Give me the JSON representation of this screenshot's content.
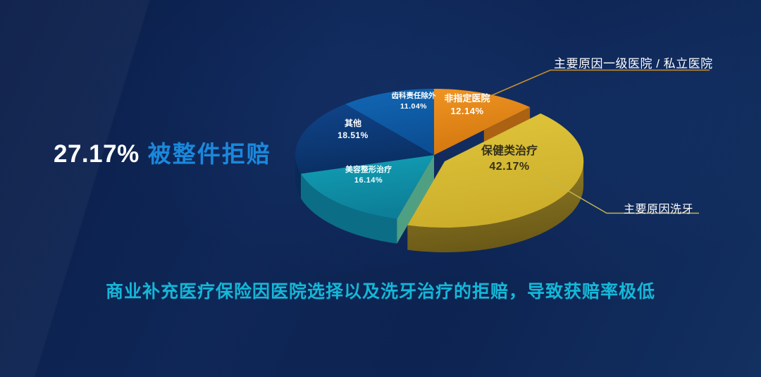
{
  "slide": {
    "headline": {
      "stat": "27.17%",
      "text": "被整件拒赔"
    },
    "annotation_top": "主要原因一级医院 / 私立医院",
    "annotation_right": "主要原因洗牙",
    "caption": "商业补充医疗保险因医院选择以及洗牙治疗的拒赔，导致获赔率极低",
    "colors": {
      "background": "#0d2351",
      "headline_stat": "#ffffff",
      "headline_text": "#1a88dc",
      "caption": "#14b7d7",
      "annotation_text": "#ffffff",
      "leader_line_top": "#c9912c",
      "leader_line_bottom": "#c3b44d"
    }
  },
  "chart_data": {
    "type": "pie",
    "style": "3d-exploded",
    "direction": "clockwise",
    "start_angle_deg": 0,
    "legend": "none",
    "total": 100,
    "slices": [
      {
        "label": "非指定医院",
        "value": 12.14,
        "display": "12.14%",
        "color_top": "#ef9422",
        "color_top2": "#d3770f",
        "color_side": "#a85f12",
        "exploded": false
      },
      {
        "label": "保健类治疗",
        "value": 42.17,
        "display": "42.17%",
        "color_top": "#e0c63c",
        "color_top2": "#ccae2b",
        "color_side": "#97802a",
        "color_side2": "#6b5a17",
        "exploded": true
      },
      {
        "label": "美容整形治疗",
        "value": 16.14,
        "display": "16.14%",
        "color_top": "#12a0b6",
        "color_top2": "#0d7f98",
        "color_side": "#0b6e86",
        "exploded": false
      },
      {
        "label": "其他",
        "value": 18.51,
        "display": "18.51%",
        "color_top": "#10458b",
        "color_top2": "#0a2f63",
        "color_side": "#082a57",
        "exploded": false
      },
      {
        "label": "齿科责任除外",
        "value": 11.04,
        "display": "11.04%",
        "color_top": "#1268b6",
        "color_top2": "#0c4f95",
        "color_side": "#0a4480",
        "exploded": false
      }
    ],
    "gap_face_color": "#5fbe8d",
    "orange_cut_face_color": "#b4650e"
  }
}
